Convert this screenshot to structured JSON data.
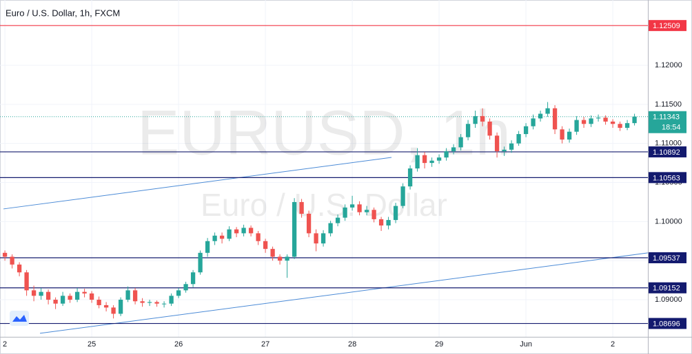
{
  "chart_data": {
    "type": "candlestick",
    "title": "Euro / U.S. Dollar, 1h, FXCM",
    "watermark": "EURUSD, 1h",
    "watermark_subtitle": "Euro / U.S. Dollar",
    "up_color": "#26a69a",
    "down_color": "#ef5350",
    "open": [
      1.096,
      1.0955,
      1.0945,
      1.0935,
      1.0912,
      1.0905,
      1.091,
      1.09,
      1.0895,
      1.0905,
      1.09,
      1.091,
      1.0908,
      1.09,
      1.0893,
      1.089,
      1.0882,
      1.09,
      1.0912,
      1.0898,
      1.0896,
      1.0897,
      1.0895,
      1.0895,
      1.0905,
      1.0912,
      1.092,
      1.0935,
      1.096,
      1.0975,
      1.0982,
      1.0978,
      1.099,
      1.0985,
      1.0992,
      1.0985,
      1.0975,
      1.0965,
      1.0955,
      1.095,
      1.0955,
      1.1025,
      1.101,
      1.0985,
      1.0972,
      1.0985,
      1.0998,
      1.1005,
      1.1018,
      1.1022,
      1.1012,
      1.1015,
      1.1003,
      1.0995,
      1.1002,
      1.102,
      1.1045,
      1.1068,
      1.1085,
      1.1075,
      1.1078,
      1.1082,
      1.109,
      1.1095,
      1.1108,
      1.1125,
      1.1135,
      1.1128,
      1.111,
      1.109,
      1.1092,
      1.11,
      1.1112,
      1.1122,
      1.1132,
      1.1138,
      1.1145,
      1.1118,
      1.1105,
      1.1115,
      1.113,
      1.1125,
      1.1132,
      1.1133,
      1.1128,
      1.1125,
      1.112,
      1.1126
    ],
    "high": [
      1.0963,
      1.0958,
      1.0948,
      1.0938,
      1.0918,
      1.0915,
      1.0913,
      1.0903,
      1.091,
      1.0908,
      1.0915,
      1.0914,
      1.0911,
      1.0904,
      1.0897,
      1.0893,
      1.0903,
      1.0917,
      1.0915,
      1.0902,
      1.09,
      1.0899,
      1.0898,
      1.0908,
      1.0915,
      1.0923,
      1.0938,
      1.0963,
      1.0979,
      1.0986,
      1.0986,
      1.0994,
      1.0993,
      1.0996,
      1.0995,
      1.0988,
      1.0978,
      1.0968,
      1.0958,
      1.0958,
      1.103,
      1.1029,
      1.1014,
      1.099,
      1.0989,
      1.1001,
      1.1009,
      1.1022,
      1.1033,
      1.1026,
      1.102,
      1.1018,
      1.1006,
      1.1006,
      1.1024,
      1.1049,
      1.1072,
      1.1094,
      1.1089,
      1.1082,
      1.1086,
      1.1094,
      1.1099,
      1.1112,
      1.113,
      1.1142,
      1.1145,
      1.1132,
      1.1114,
      1.1096,
      1.1104,
      1.1116,
      1.1126,
      1.1137,
      1.1142,
      1.1153,
      1.1149,
      1.1122,
      1.1119,
      1.1135,
      1.1134,
      1.1136,
      1.1137,
      1.1136,
      1.1131,
      1.1128,
      1.113,
      1.1138
    ],
    "low": [
      1.095,
      1.094,
      1.093,
      1.0905,
      1.0898,
      1.09,
      1.0894,
      1.0888,
      1.0892,
      1.0896,
      1.0897,
      1.0903,
      1.0896,
      1.0889,
      1.0885,
      1.0876,
      1.0879,
      1.0897,
      1.0894,
      1.0891,
      1.0892,
      1.0891,
      1.089,
      1.0892,
      1.0902,
      1.0909,
      1.0916,
      1.0932,
      1.0955,
      1.097,
      1.0972,
      1.0975,
      1.098,
      1.0981,
      1.0981,
      1.097,
      1.096,
      1.095,
      1.0945,
      1.0928,
      1.0952,
      1.1005,
      1.098,
      1.0962,
      1.0968,
      1.0981,
      1.0994,
      1.1001,
      1.1014,
      1.1008,
      1.1008,
      1.0999,
      1.0988,
      1.099,
      1.0998,
      1.1017,
      1.1041,
      1.1064,
      1.1068,
      1.107,
      1.1074,
      1.1078,
      1.1086,
      1.1091,
      1.1104,
      1.112,
      1.1122,
      1.1105,
      1.1082,
      1.1084,
      1.1088,
      1.1097,
      1.1108,
      1.1118,
      1.1128,
      1.1134,
      1.1112,
      1.11,
      1.1101,
      1.1111,
      1.112,
      1.1121,
      1.1128,
      1.1124,
      1.112,
      1.1116,
      1.1117,
      1.1123
    ],
    "close": [
      1.0955,
      1.0945,
      1.0935,
      1.0912,
      1.0905,
      1.091,
      1.09,
      1.0895,
      1.0905,
      1.09,
      1.091,
      1.0908,
      1.09,
      1.0893,
      1.089,
      1.0882,
      1.09,
      1.0912,
      1.0898,
      1.0896,
      1.0897,
      1.0895,
      1.0895,
      1.0905,
      1.0912,
      1.092,
      1.0935,
      1.096,
      1.0975,
      1.0982,
      1.0978,
      1.099,
      1.0985,
      1.0992,
      1.0985,
      1.0975,
      1.0965,
      1.0955,
      1.095,
      1.0955,
      1.1025,
      1.101,
      1.0985,
      1.0972,
      1.0985,
      1.0998,
      1.1005,
      1.1018,
      1.1022,
      1.1012,
      1.1015,
      1.1003,
      1.0995,
      1.1002,
      1.102,
      1.1045,
      1.1068,
      1.1085,
      1.1075,
      1.1078,
      1.1082,
      1.109,
      1.1095,
      1.1108,
      1.1125,
      1.1135,
      1.1128,
      1.111,
      1.109,
      1.1092,
      1.11,
      1.1112,
      1.1122,
      1.1132,
      1.1138,
      1.1145,
      1.1118,
      1.1105,
      1.1115,
      1.113,
      1.1125,
      1.1132,
      1.1133,
      1.1128,
      1.1125,
      1.112,
      1.1126,
      1.11343
    ],
    "xlim": [
      -0.2,
      88.85
    ],
    "xticks": [
      {
        "value": 0,
        "label": "2"
      },
      {
        "value": 12,
        "label": "25"
      },
      {
        "value": 24,
        "label": "26"
      },
      {
        "value": 36,
        "label": "27"
      },
      {
        "value": 48,
        "label": "28"
      },
      {
        "value": 60,
        "label": "29"
      },
      {
        "value": 72,
        "label": "Jun"
      },
      {
        "value": 84,
        "label": "2"
      }
    ],
    "ylim": [
      1.08525,
      1.12792
    ],
    "yticks": [
      {
        "value": 1.12,
        "label": "1.12000"
      },
      {
        "value": 1.115,
        "label": "1.11500"
      },
      {
        "value": 1.11,
        "label": "1.11000"
      },
      {
        "value": 1.105,
        "label": "1.10500"
      },
      {
        "value": 1.1,
        "label": "1.10000"
      },
      {
        "value": 1.095,
        "label": "1.09500"
      },
      {
        "value": 1.09,
        "label": "1.09000"
      }
    ],
    "grid": true,
    "levels": [
      {
        "value": 1.12509,
        "color": "#f23645"
      },
      {
        "value": 1.10892,
        "color": "#131a6e"
      },
      {
        "value": 1.10563,
        "color": "#131a6e"
      },
      {
        "value": 1.09537,
        "color": "#131a6e"
      },
      {
        "value": 1.09152,
        "color": "#131a6e"
      },
      {
        "value": 1.08696,
        "color": "#131a6e"
      }
    ],
    "trendlines": [
      {
        "x": [
          -0.2,
          53.42
        ],
        "y": [
          1.10162,
          1.10821
        ],
        "color": "#4a8ad6"
      },
      {
        "x": [
          4.85,
          88.85
        ],
        "y": [
          1.0857,
          1.09599
        ],
        "color": "#4a8ad6"
      }
    ],
    "last_price": 1.11343,
    "countdown": "18:54",
    "last_color": "#26a69a"
  }
}
